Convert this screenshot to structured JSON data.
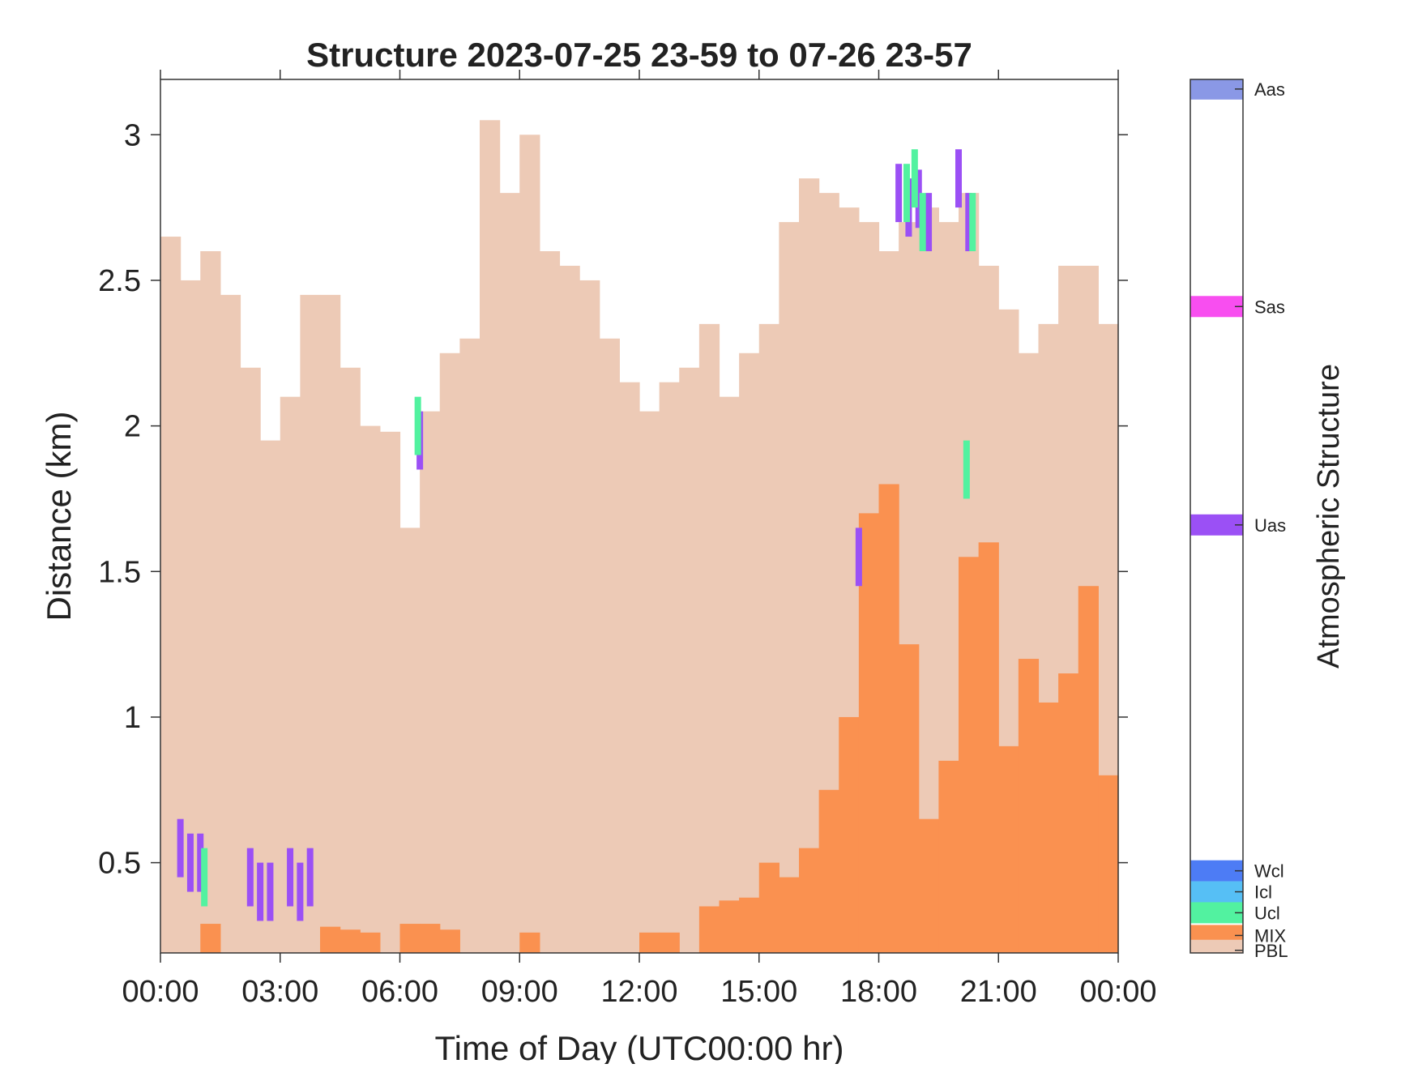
{
  "chart_data": {
    "type": "area",
    "title": "Structure 2023-07-25 23-59 to 07-26 23-57",
    "xlabel": "Time of Day (UTC00:00 hr)",
    "ylabel": "Distance (km)",
    "xlim": [
      0,
      24
    ],
    "ylim": [
      0.19,
      3.19
    ],
    "x_ticks": [
      0,
      3,
      6,
      9,
      12,
      15,
      18,
      21,
      24
    ],
    "x_tick_labels": [
      "00:00",
      "03:00",
      "06:00",
      "09:00",
      "12:00",
      "15:00",
      "18:00",
      "21:00",
      "00:00"
    ],
    "y_ticks": [
      0.5,
      1,
      1.5,
      2,
      2.5,
      3
    ],
    "y_tick_labels": [
      "0.5",
      "1",
      "1.5",
      "2",
      "2.5",
      "3"
    ],
    "grid": false,
    "colorbar": {
      "title": "Atmospheric Structure",
      "categories": [
        {
          "name": "Aas",
          "color": "#8a98e6"
        },
        {
          "name": "Sas",
          "color": "#f84ef0"
        },
        {
          "name": "Uas",
          "color": "#9b50f5"
        },
        {
          "name": "Wcl",
          "color": "#4d7cf5"
        },
        {
          "name": "Icl",
          "color": "#56bff5"
        },
        {
          "name": "Ucl",
          "color": "#52f2a0"
        },
        {
          "name": "MIX",
          "color": "#fa9150"
        },
        {
          "name": "PBL",
          "color": "#edcab6"
        }
      ]
    },
    "series": [
      {
        "name": "PBL",
        "color": "#edcab6",
        "x": [
          0,
          0.5,
          1,
          1.5,
          2,
          2.5,
          3,
          3.5,
          4,
          4.5,
          5,
          5.5,
          6,
          6.5,
          7,
          7.5,
          8,
          8.5,
          9,
          9.5,
          10,
          10.5,
          11,
          11.5,
          12,
          12.5,
          13,
          13.5,
          14,
          14.5,
          15,
          15.5,
          16,
          16.5,
          17,
          17.5,
          18,
          18.5,
          19,
          19.5,
          20,
          20.5,
          21,
          21.5,
          22,
          22.5,
          23,
          23.5,
          24
        ],
        "values": [
          2.65,
          2.5,
          2.6,
          2.45,
          2.2,
          1.95,
          2.1,
          2.45,
          2.45,
          2.2,
          2.0,
          1.98,
          1.65,
          2.05,
          2.25,
          2.3,
          3.05,
          2.8,
          3.0,
          2.6,
          2.55,
          2.5,
          2.3,
          2.15,
          2.05,
          2.15,
          2.2,
          2.35,
          2.1,
          2.25,
          2.35,
          2.7,
          2.85,
          2.8,
          2.75,
          2.7,
          2.6,
          2.7,
          2.75,
          2.7,
          2.8,
          2.55,
          2.4,
          2.25,
          2.35,
          2.55,
          2.55,
          2.35,
          2.25
        ]
      },
      {
        "name": "MIX",
        "color": "#fa9150",
        "x": [
          0,
          0.5,
          1,
          1.5,
          2,
          2.5,
          3,
          3.5,
          4,
          4.5,
          5,
          5.5,
          6,
          6.5,
          7,
          7.5,
          8,
          8.5,
          9,
          9.5,
          10,
          10.5,
          11,
          11.5,
          12,
          12.5,
          13,
          13.5,
          14,
          14.5,
          15,
          15.5,
          16,
          16.5,
          17,
          17.5,
          18,
          18.5,
          19,
          19.5,
          20,
          20.5,
          21,
          21.5,
          22,
          22.5,
          23,
          23.5,
          24
        ],
        "values": [
          0,
          0,
          0.29,
          0,
          0,
          0,
          0,
          0,
          0.28,
          0.27,
          0.26,
          0,
          0.29,
          0.29,
          0.27,
          0,
          0,
          0,
          0.26,
          0,
          0,
          0,
          0,
          0,
          0.26,
          0.26,
          0,
          0.35,
          0.37,
          0.38,
          0.5,
          0.45,
          0.55,
          0.75,
          1.0,
          1.7,
          1.8,
          1.25,
          0.65,
          0.85,
          1.55,
          1.6,
          0.9,
          1.2,
          1.05,
          1.15,
          1.45,
          0.8,
          0.66
        ]
      },
      {
        "name": "Uas",
        "color": "#9b50f5",
        "x": [
          0.5,
          0.75,
          1.0,
          2.25,
          2.5,
          2.75,
          3.25,
          3.5,
          3.75,
          6.5,
          17.5,
          18.5,
          18.75,
          19,
          19.25,
          20,
          20.25
        ],
        "values": [
          0.55,
          0.5,
          0.5,
          0.45,
          0.4,
          0.4,
          0.45,
          0.4,
          0.45,
          1.95,
          1.55,
          2.8,
          2.75,
          2.78,
          2.7,
          2.85,
          2.7
        ]
      },
      {
        "name": "Ucl",
        "color": "#52f2a0",
        "x": [
          1.1,
          6.45,
          18.7,
          18.9,
          19.1,
          20.2,
          20.35
        ],
        "values": [
          0.45,
          2.0,
          2.8,
          2.85,
          2.7,
          1.85,
          2.7
        ]
      }
    ]
  }
}
